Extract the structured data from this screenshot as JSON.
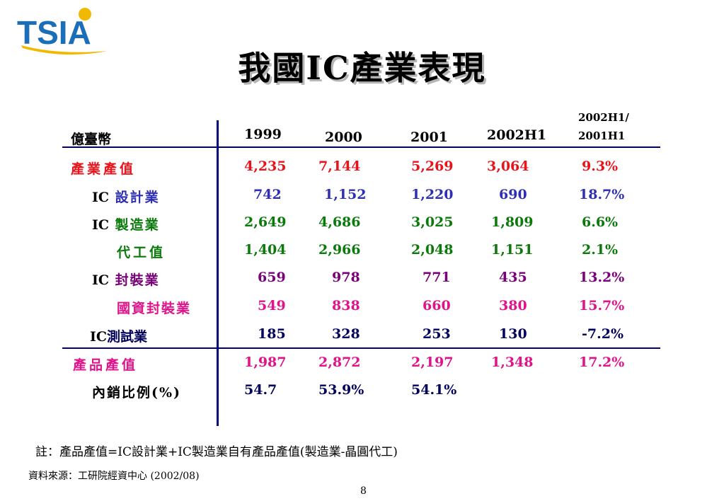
{
  "logo": {
    "text": "TSIA"
  },
  "title": "我國IC產業表現",
  "table": {
    "unit_label": "億臺幣",
    "headers": [
      "1999",
      "2000",
      "2001",
      "2002H1"
    ],
    "growth_header": [
      "2002H1/",
      "2001H1"
    ],
    "rows": [
      {
        "prefix": "",
        "label": "產業產值",
        "values": [
          "4,235",
          "7,144",
          "5,269",
          "3,064",
          "9.3%"
        ],
        "color": "#e8141b"
      },
      {
        "prefix": "IC",
        "label": " 設計業",
        "values": [
          "742",
          "1,152",
          "1,220",
          "690",
          "18.7%"
        ],
        "color": "#2f2fb4"
      },
      {
        "prefix": "IC",
        "label": " 製造業",
        "values": [
          "2,649",
          "4,686",
          "3,025",
          "1,809",
          "6.6%"
        ],
        "color": "#0a7a0a"
      },
      {
        "prefix": "",
        "label": "代工值",
        "values": [
          "1,404",
          "2,966",
          "2,048",
          "1,151",
          "2.1%"
        ],
        "color": "#0a7a0a"
      },
      {
        "prefix": "IC",
        "label": " 封裝業",
        "values": [
          "659",
          "978",
          "771",
          "435",
          "13.2%"
        ],
        "color": "#7a007a"
      },
      {
        "prefix": "",
        "label": "國資封裝業",
        "values": [
          "549",
          "838",
          "660",
          "380",
          "15.7%"
        ],
        "color": "#e0148a"
      },
      {
        "prefix": "IC",
        "label": "測試業",
        "values": [
          "185",
          "328",
          "253",
          "130",
          "-7.2%"
        ],
        "color": "#00005c"
      },
      {
        "prefix": "",
        "label": "產品產值",
        "values": [
          "1,987",
          "2,872",
          "2,197",
          "1,348",
          "17.2%"
        ],
        "color": "#e0148a"
      },
      {
        "prefix": "",
        "label": "內銷比例(%)",
        "values": [
          "54.7",
          "53.9%",
          "54.1%",
          "",
          ""
        ],
        "color": "#00005c"
      }
    ]
  },
  "note": "註：產品產值=IC設計業+IC製造業自有產品產值(製造業-晶圓代工)",
  "source": "資料來源：工研院經資中心 (2002/08)",
  "page_number": "8"
}
